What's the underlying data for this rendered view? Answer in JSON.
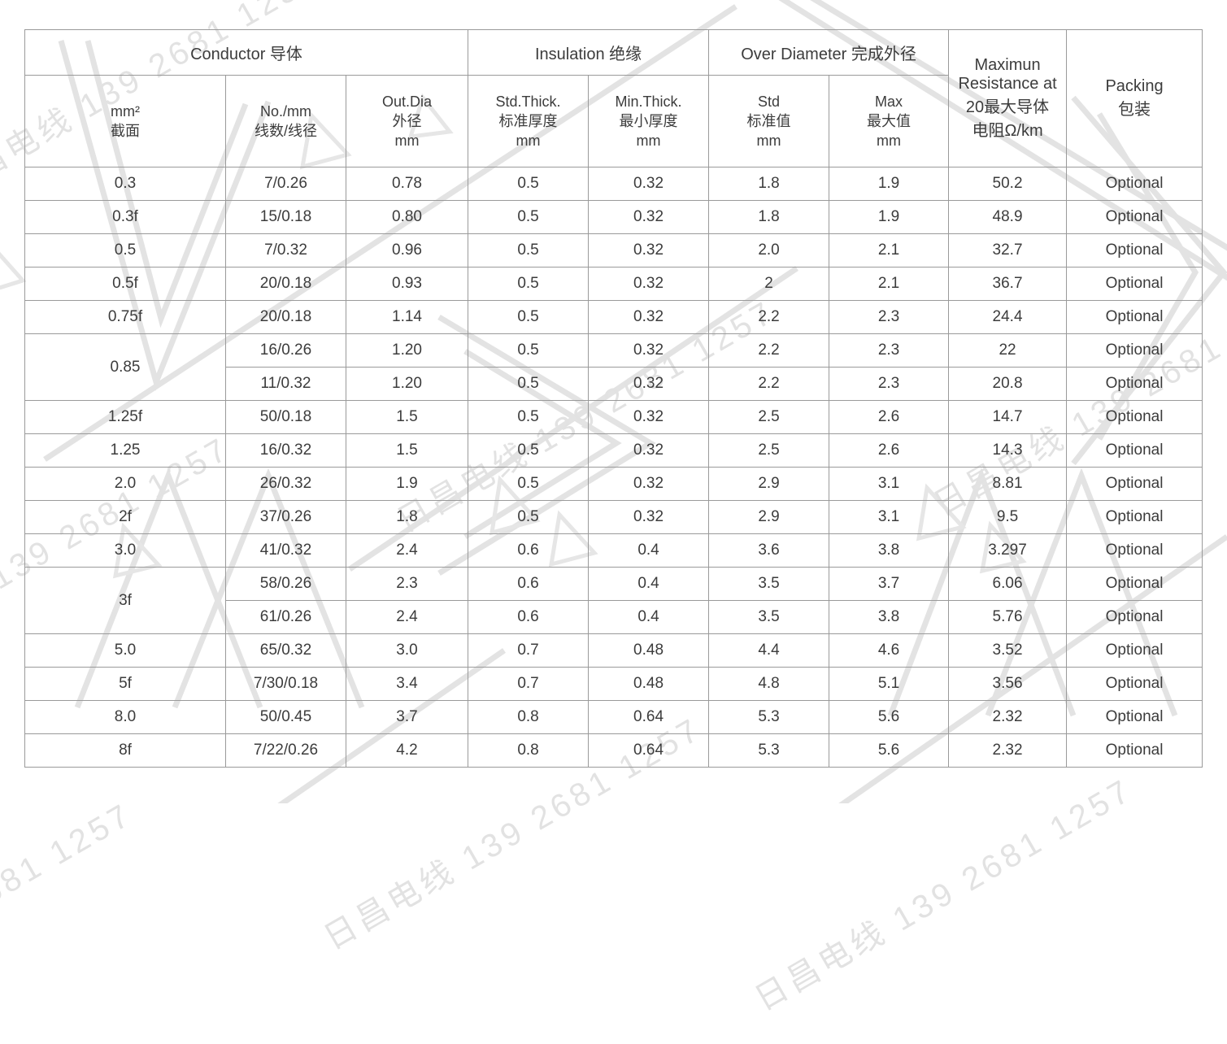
{
  "watermark": {
    "text": "日昌电线 139 2681 1257",
    "color": "#e2e2e2"
  },
  "table": {
    "header_groups": [
      {
        "label": "Conductor 导体",
        "colspan": 3
      },
      {
        "label": "Insulation 绝缘",
        "colspan": 2
      },
      {
        "label": "Over Diameter 完成外径",
        "colspan": 2
      }
    ],
    "resistance_header": "Maximun\nResistance at\n20最大导体\n电阻Ω/km",
    "packing_header": "Packing\n包装",
    "columns": [
      {
        "label": "mm²\n截面"
      },
      {
        "label": "No./mm\n线数/线径"
      },
      {
        "label": "Out.Dia\n外径\nmm"
      },
      {
        "label": "Std.Thick.\n标准厚度\nmm"
      },
      {
        "label": "Min.Thick.\n最小厚度\nmm"
      },
      {
        "label": "Std\n标准值\nmm"
      },
      {
        "label": "Max\n最大值\nmm"
      }
    ],
    "rows": [
      {
        "cells": [
          {
            "text": "0.3"
          },
          {
            "text": "7/0.26"
          },
          {
            "text": "0.78"
          },
          {
            "text": "0.5"
          },
          {
            "text": "0.32"
          },
          {
            "text": "1.8"
          },
          {
            "text": "1.9"
          },
          {
            "text": "50.2"
          },
          {
            "text": "Optional"
          }
        ]
      },
      {
        "cells": [
          {
            "text": "0.3f"
          },
          {
            "text": "15/0.18"
          },
          {
            "text": "0.80"
          },
          {
            "text": "0.5"
          },
          {
            "text": "0.32"
          },
          {
            "text": "1.8"
          },
          {
            "text": "1.9"
          },
          {
            "text": "48.9"
          },
          {
            "text": "Optional"
          }
        ]
      },
      {
        "cells": [
          {
            "text": "0.5"
          },
          {
            "text": "7/0.32"
          },
          {
            "text": "0.96"
          },
          {
            "text": "0.5"
          },
          {
            "text": "0.32"
          },
          {
            "text": "2.0"
          },
          {
            "text": "2.1"
          },
          {
            "text": "32.7"
          },
          {
            "text": "Optional"
          }
        ]
      },
      {
        "cells": [
          {
            "text": "0.5f"
          },
          {
            "text": "20/0.18"
          },
          {
            "text": "0.93"
          },
          {
            "text": "0.5"
          },
          {
            "text": "0.32"
          },
          {
            "text": "2"
          },
          {
            "text": "2.1"
          },
          {
            "text": "36.7"
          },
          {
            "text": "Optional"
          }
        ]
      },
      {
        "cells": [
          {
            "text": "0.75f"
          },
          {
            "text": "20/0.18"
          },
          {
            "text": "1.14"
          },
          {
            "text": "0.5"
          },
          {
            "text": "0.32"
          },
          {
            "text": "2.2"
          },
          {
            "text": "2.3"
          },
          {
            "text": "24.4"
          },
          {
            "text": "Optional"
          }
        ]
      },
      {
        "cells": [
          {
            "text": "0.85",
            "rowspan": 2
          },
          {
            "text": "16/0.26"
          },
          {
            "text": "1.20"
          },
          {
            "text": "0.5"
          },
          {
            "text": "0.32"
          },
          {
            "text": "2.2"
          },
          {
            "text": "2.3"
          },
          {
            "text": "22"
          },
          {
            "text": "Optional"
          }
        ]
      },
      {
        "cells": [
          {
            "text": "11/0.32"
          },
          {
            "text": "1.20"
          },
          {
            "text": "0.5"
          },
          {
            "text": "0.32"
          },
          {
            "text": "2.2"
          },
          {
            "text": "2.3"
          },
          {
            "text": "20.8"
          },
          {
            "text": "Optional"
          }
        ]
      },
      {
        "cells": [
          {
            "text": "1.25f"
          },
          {
            "text": "50/0.18"
          },
          {
            "text": "1.5"
          },
          {
            "text": "0.5"
          },
          {
            "text": "0.32"
          },
          {
            "text": "2.5"
          },
          {
            "text": "2.6"
          },
          {
            "text": "14.7"
          },
          {
            "text": "Optional"
          }
        ]
      },
      {
        "cells": [
          {
            "text": "1.25"
          },
          {
            "text": "16/0.32"
          },
          {
            "text": "1.5"
          },
          {
            "text": "0.5"
          },
          {
            "text": "0.32"
          },
          {
            "text": "2.5"
          },
          {
            "text": "2.6"
          },
          {
            "text": "14.3"
          },
          {
            "text": "Optional"
          }
        ]
      },
      {
        "cells": [
          {
            "text": "2.0"
          },
          {
            "text": "26/0.32"
          },
          {
            "text": "1.9"
          },
          {
            "text": "0.5"
          },
          {
            "text": "0.32"
          },
          {
            "text": "2.9"
          },
          {
            "text": "3.1"
          },
          {
            "text": "8.81"
          },
          {
            "text": "Optional"
          }
        ]
      },
      {
        "cells": [
          {
            "text": "2f"
          },
          {
            "text": "37/0.26"
          },
          {
            "text": "1.8"
          },
          {
            "text": "0.5"
          },
          {
            "text": "0.32"
          },
          {
            "text": "2.9"
          },
          {
            "text": "3.1"
          },
          {
            "text": "9.5"
          },
          {
            "text": "Optional"
          }
        ]
      },
      {
        "cells": [
          {
            "text": "3.0"
          },
          {
            "text": "41/0.32"
          },
          {
            "text": "2.4"
          },
          {
            "text": "0.6"
          },
          {
            "text": "0.4"
          },
          {
            "text": "3.6"
          },
          {
            "text": "3.8"
          },
          {
            "text": "3.297"
          },
          {
            "text": "Optional"
          }
        ]
      },
      {
        "cells": [
          {
            "text": "3f",
            "rowspan": 2
          },
          {
            "text": "58/0.26"
          },
          {
            "text": "2.3"
          },
          {
            "text": "0.6"
          },
          {
            "text": "0.4"
          },
          {
            "text": "3.5"
          },
          {
            "text": "3.7"
          },
          {
            "text": "6.06"
          },
          {
            "text": "Optional"
          }
        ]
      },
      {
        "cells": [
          {
            "text": "61/0.26"
          },
          {
            "text": "2.4"
          },
          {
            "text": "0.6"
          },
          {
            "text": "0.4"
          },
          {
            "text": "3.5"
          },
          {
            "text": "3.8"
          },
          {
            "text": "5.76"
          },
          {
            "text": "Optional"
          }
        ]
      },
      {
        "cells": [
          {
            "text": "5.0"
          },
          {
            "text": "65/0.32"
          },
          {
            "text": "3.0"
          },
          {
            "text": "0.7"
          },
          {
            "text": "0.48"
          },
          {
            "text": "4.4"
          },
          {
            "text": "4.6"
          },
          {
            "text": "3.52"
          },
          {
            "text": "Optional"
          }
        ]
      },
      {
        "cells": [
          {
            "text": "5f"
          },
          {
            "text": "7/30/0.18"
          },
          {
            "text": "3.4"
          },
          {
            "text": "0.7"
          },
          {
            "text": "0.48"
          },
          {
            "text": "4.8"
          },
          {
            "text": "5.1"
          },
          {
            "text": "3.56"
          },
          {
            "text": "Optional"
          }
        ]
      },
      {
        "cells": [
          {
            "text": "8.0"
          },
          {
            "text": "50/0.45"
          },
          {
            "text": "3.7"
          },
          {
            "text": "0.8"
          },
          {
            "text": "0.64"
          },
          {
            "text": "5.3"
          },
          {
            "text": "5.6"
          },
          {
            "text": "2.32"
          },
          {
            "text": "Optional"
          }
        ]
      },
      {
        "cells": [
          {
            "text": "8f"
          },
          {
            "text": "7/22/0.26"
          },
          {
            "text": "4.2"
          },
          {
            "text": "0.8"
          },
          {
            "text": "0.64"
          },
          {
            "text": "5.3"
          },
          {
            "text": "5.6"
          },
          {
            "text": "2.32"
          },
          {
            "text": "Optional"
          }
        ]
      }
    ]
  }
}
